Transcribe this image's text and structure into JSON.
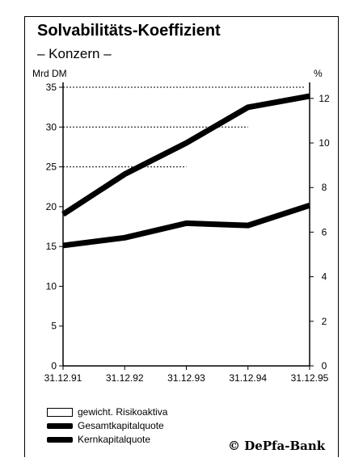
{
  "header": {
    "title": "Solvabilitäts-Koeffizient",
    "subtitle": "– Konzern –"
  },
  "chart_data": {
    "type": "line",
    "title": "Solvabilitäts-Koeffizient",
    "subtitle": "– Konzern –",
    "ylabel_left": "Mrd DM",
    "ylabel_right": "%",
    "categories": [
      "31.12.91",
      "31.12.92",
      "31.12.93",
      "31.12.94",
      "31.12.95"
    ],
    "y_left": {
      "range": [
        0,
        35
      ],
      "ticks": [
        "0",
        "5",
        "10",
        "15",
        "20",
        "25",
        "30",
        "35"
      ]
    },
    "y_right": {
      "range": [
        0,
        12.5
      ],
      "ticks": [
        "0",
        "2",
        "4",
        "6",
        "8",
        "10",
        "12"
      ]
    },
    "grid": false,
    "legend_position": "bottom-left",
    "series": [
      {
        "name": "gewicht. Risikoaktiva",
        "axis": "left",
        "style": "dotted",
        "values": [
          25,
          30,
          35,
          null,
          null
        ]
      },
      {
        "name": "Gesamtkapitalquote",
        "axis": "right",
        "style": "thick",
        "values": [
          6.8,
          8.6,
          10.0,
          11.6,
          12.1
        ]
      },
      {
        "name": "Kernkapitalquote",
        "axis": "right",
        "style": "thick",
        "values": [
          5.4,
          5.75,
          6.4,
          6.3,
          7.2
        ]
      }
    ]
  },
  "legend": [
    {
      "label": "gewicht. Risikoaktiva",
      "swatch": "outline"
    },
    {
      "label": "Gesamtkapitalquote",
      "swatch": "thick"
    },
    {
      "label": "Kernkapitalquote",
      "swatch": "thick"
    }
  ],
  "copyright": "© DePfa-Bank",
  "colors": {
    "ink": "#000000",
    "background": "#ffffff"
  }
}
